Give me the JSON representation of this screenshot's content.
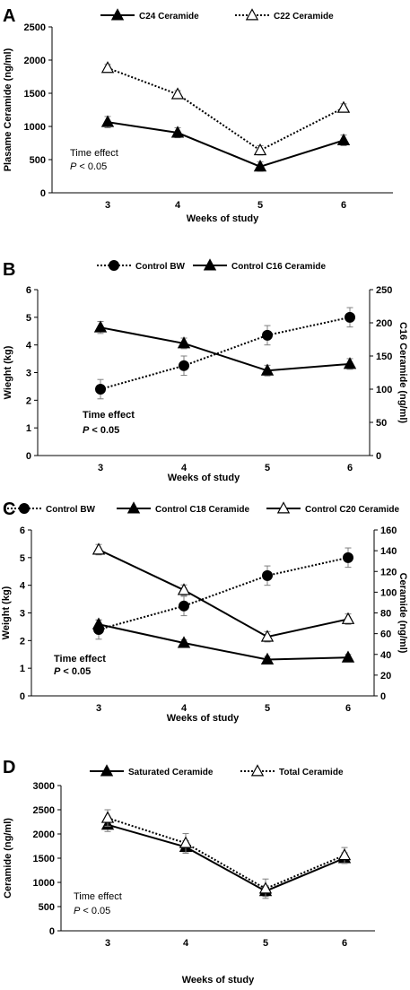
{
  "chart_data": [
    {
      "panel": "A",
      "type": "line",
      "categories": [
        "3",
        "4",
        "5",
        "6"
      ],
      "xlabel": "Weeks of study",
      "ylabel": "Plasame Ceramide (ng/ml)",
      "ylim": [
        0,
        2500
      ],
      "yticks": [
        "0",
        "500",
        "1000",
        "1500",
        "2000",
        "2500"
      ],
      "annotation": [
        "Time effect",
        "P < 0.05"
      ],
      "legend_position": "top",
      "series": [
        {
          "name": "C24 Ceramide",
          "values": [
            1065,
            905,
            395,
            790
          ],
          "errors": [
            85,
            75,
            70,
            80
          ],
          "marker": "filled-triangle",
          "dash": false,
          "axis": "left"
        },
        {
          "name": "C22 Ceramide",
          "values": [
            1880,
            1485,
            640,
            1280
          ],
          "errors": [
            55,
            55,
            70,
            60
          ],
          "marker": "open-triangle",
          "dash": true,
          "axis": "left"
        }
      ]
    },
    {
      "panel": "B",
      "type": "line",
      "categories": [
        "3",
        "4",
        "5",
        "6"
      ],
      "xlabel": "Weeks of study",
      "ylabel": "Wieght (kg)",
      "ylabel_right": "C16 Ceramide (ng/ml)",
      "ylim": [
        0,
        6
      ],
      "ylim_right": [
        0,
        250
      ],
      "yticks": [
        "0",
        "1",
        "2",
        "3",
        "4",
        "5",
        "6"
      ],
      "yticks_right": [
        "0",
        "50",
        "100",
        "150",
        "200",
        "250"
      ],
      "annotation": [
        "Time effect",
        "P < 0.05"
      ],
      "legend_position": "top",
      "series": [
        {
          "name": "Control BW",
          "values": [
            2.4,
            3.25,
            4.35,
            5.0
          ],
          "errors": [
            0.35,
            0.35,
            0.35,
            0.35
          ],
          "marker": "circle",
          "dash": true,
          "axis": "left"
        },
        {
          "name": "Control C16 Ceramide",
          "values": [
            193,
            169,
            128,
            138
          ],
          "errors": [
            9,
            8,
            8,
            8
          ],
          "marker": "filled-triangle",
          "dash": false,
          "axis": "right"
        }
      ]
    },
    {
      "panel": "C",
      "type": "line",
      "categories": [
        "3",
        "4",
        "5",
        "6"
      ],
      "xlabel": "Weeks of study",
      "ylabel": "Weight (kg)",
      "ylabel_right": "Ceramide (ng/ml)",
      "ylim": [
        0,
        6
      ],
      "ylim_right": [
        0,
        160
      ],
      "yticks": [
        "0",
        "1",
        "2",
        "3",
        "4",
        "5",
        "6"
      ],
      "yticks_right": [
        "0",
        "20",
        "40",
        "60",
        "80",
        "100",
        "120",
        "140",
        "160"
      ],
      "annotation": [
        "Time effect",
        "P < 0.05"
      ],
      "legend_position": "top",
      "series": [
        {
          "name": "Control BW",
          "values": [
            2.4,
            3.25,
            4.35,
            5.0
          ],
          "errors": [
            0.35,
            0.35,
            0.35,
            0.35
          ],
          "marker": "circle",
          "dash": true,
          "axis": "left"
        },
        {
          "name": "Control C18 Ceramide",
          "values": [
            69,
            51,
            35,
            37
          ],
          "errors": [
            4,
            3,
            3,
            3
          ],
          "marker": "filled-triangle",
          "dash": false,
          "axis": "right"
        },
        {
          "name": "Control C20 Ceramide",
          "values": [
            141,
            102,
            57,
            74
          ],
          "errors": [
            5,
            5,
            5,
            5
          ],
          "marker": "open-triangle",
          "dash": false,
          "axis": "right"
        }
      ]
    },
    {
      "panel": "D",
      "type": "line",
      "categories": [
        "3",
        "4",
        "5",
        "6"
      ],
      "xlabel": "Weeks of study",
      "ylabel": "Ceramide (ng/ml)",
      "ylim": [
        0,
        3000
      ],
      "yticks": [
        "0",
        "500",
        "1000",
        "1500",
        "2000",
        "2500",
        "3000"
      ],
      "annotation": [
        "Time effect",
        "P < 0.05"
      ],
      "legend_position": "top",
      "series": [
        {
          "name": "Saturated Ceramide",
          "values": [
            2190,
            1730,
            820,
            1500
          ],
          "errors": [
            140,
            130,
            110,
            110
          ],
          "marker": "filled-triangle",
          "dash": false,
          "axis": "left"
        },
        {
          "name": "Total Ceramide",
          "values": [
            2330,
            1810,
            870,
            1560
          ],
          "errors": [
            170,
            200,
            200,
            160
          ],
          "marker": "open-triangle",
          "dash": true,
          "axis": "left"
        }
      ]
    }
  ],
  "colors": {
    "line": "#000000",
    "error_bar": "#7f7f7f",
    "open_marker_fill": "#ffffff",
    "background": "#ffffff"
  }
}
